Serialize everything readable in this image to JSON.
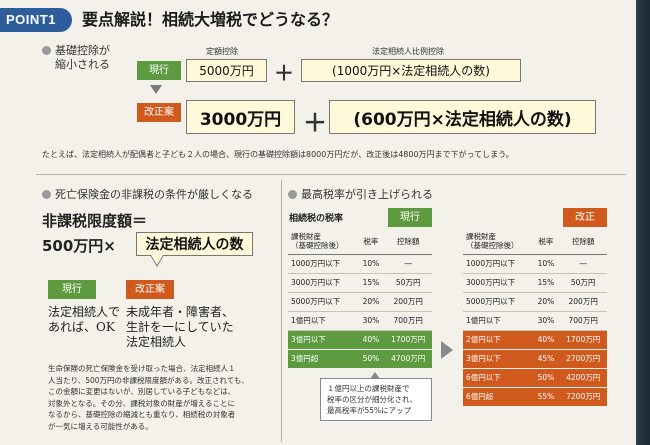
{
  "header": {
    "badge": "POINT1",
    "title": "要点解説！相続大増税でどうなる？"
  },
  "basic_deduction": {
    "heading_line1": "基礎控除が",
    "heading_line2": "縮小される",
    "caption_fixed": "定額控除",
    "caption_proportional": "法定相続人比例控除",
    "current_label": "現行",
    "current_fixed": "5000万円",
    "current_proportional": "(1000万円×法定相続人の数)",
    "plus": "＋",
    "reform_label": "改正案",
    "reform_fixed": "3000万円",
    "reform_proportional": "(600万円×法定相続人の数)",
    "example": "たとえば、法定相続人が配偶者と子ども２人の場合、現行の基礎控除額は8000万円だが、改正後は4800万円まで下がってしまう。"
  },
  "life_insurance": {
    "heading": "死亡保険金の非課税の条件が厳しくなる",
    "formula_line1": "非課税限度額＝",
    "formula_amount": "500万円×",
    "formula_heirs": "法定相続人の数",
    "current_label": "現行",
    "current_text_line1": "法定相続人で",
    "current_text_line2": "あれば、OK",
    "reform_label": "改正案",
    "reform_text_line1": "未成年者・障害者、",
    "reform_text_line2": "生計を一にしていた",
    "reform_text_line3": "法定相続人",
    "note_lines": [
      "生命保険の死亡保険金を受け取った場合、法定相続人１",
      "人当たり、500万円の非課税限度額がある。改正されても、",
      "この金額に変更はないが、別居している子どもなどは、",
      "対象外となる。その分、課税対象の財産が増えることに",
      "なるから、基礎控除の縮減とも重なり、相続税の対象者",
      "が一気に増える可能性がある。"
    ]
  },
  "top_rate": {
    "heading": "最高税率が引き上げられる",
    "table_title": "相続税の税率",
    "current_label": "現行",
    "reform_label": "改正",
    "col_property_line1": "課税財産",
    "col_property_line2": "（基礎控除後）",
    "col_rate": "税率",
    "col_deduction": "控除額",
    "current_rows": [
      {
        "property": "1000万円以下",
        "rate": "10%",
        "deduction": "―"
      },
      {
        "property": "3000万円以下",
        "rate": "15%",
        "deduction": "50万円"
      },
      {
        "property": "5000万円以下",
        "rate": "20%",
        "deduction": "200万円"
      },
      {
        "property": "1億円以下",
        "rate": "30%",
        "deduction": "700万円"
      },
      {
        "property": "3億円以下",
        "rate": "40%",
        "deduction": "1700万円"
      },
      {
        "property": "3億円超",
        "rate": "50%",
        "deduction": "4700万円"
      }
    ],
    "reform_rows": [
      {
        "property": "1000万円以下",
        "rate": "10%",
        "deduction": "―"
      },
      {
        "property": "3000万円以下",
        "rate": "15%",
        "deduction": "50万円"
      },
      {
        "property": "5000万円以下",
        "rate": "20%",
        "deduction": "200万円"
      },
      {
        "property": "1億円以下",
        "rate": "30%",
        "deduction": "700万円"
      },
      {
        "property": "2億円以下",
        "rate": "40%",
        "deduction": "1700万円"
      },
      {
        "property": "3億円以下",
        "rate": "45%",
        "deduction": "2700万円"
      },
      {
        "property": "6億円以下",
        "rate": "50%",
        "deduction": "4200万円"
      },
      {
        "property": "6億円超",
        "rate": "55%",
        "deduction": "7200万円"
      }
    ],
    "note_line1": "１億円以上の課税財産で",
    "note_line2": "税率の区分が細分化され、",
    "note_line3": "最高税率が55%にアップ"
  },
  "colors": {
    "green": "#5e9a3f",
    "orange": "#d05a1d",
    "badge_blue": "#2d5d9a",
    "box_fill": "#fff9d9"
  }
}
